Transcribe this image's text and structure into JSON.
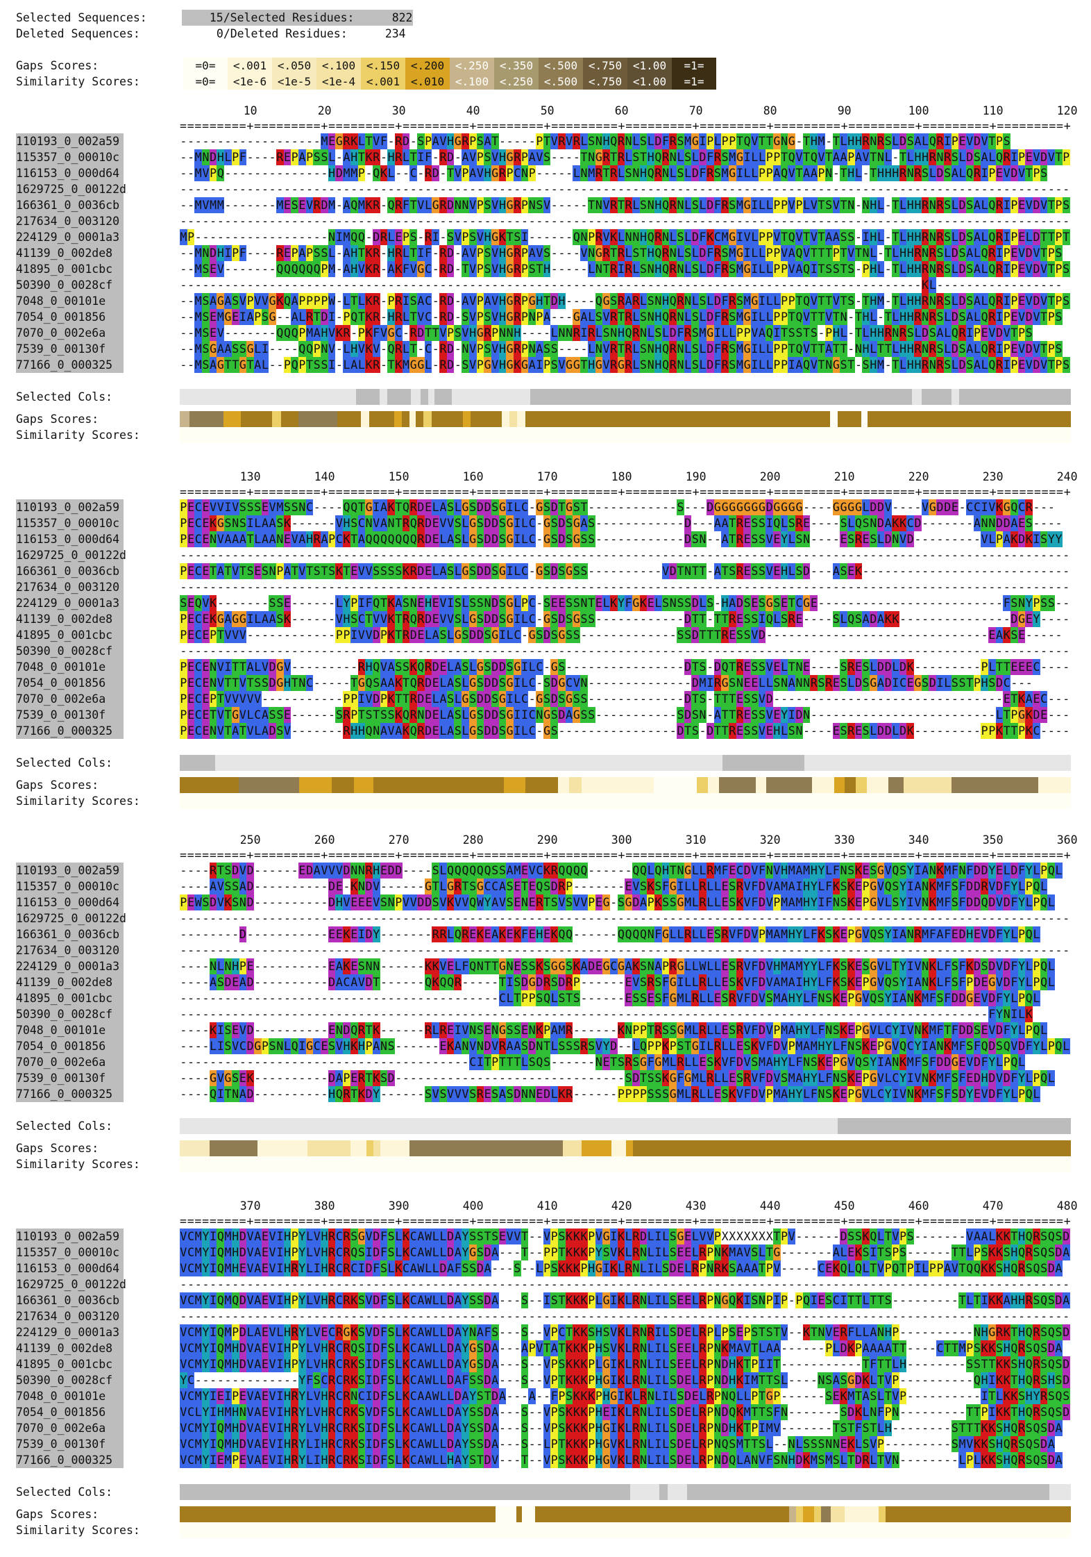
{
  "header": {
    "selected_sequences_label": "Selected Sequences:",
    "selected_sequences_value": "15",
    "selected_residues_label": "/Selected Residues:",
    "selected_residues_value": "822",
    "deleted_sequences_label": "Deleted Sequences:",
    "deleted_sequences_value": "0",
    "deleted_residues_label": "/Deleted Residues:",
    "deleted_residues_value": "234"
  },
  "legend": {
    "gaps_label": "Gaps Scores:",
    "similarity_label": "Similarity Scores:",
    "gaps_row": [
      "=0=",
      "<.001",
      "<.050",
      "<.100",
      "<.150",
      "<.200",
      "<.250",
      "<.350",
      "<.500",
      "<.750",
      "<1.00",
      "=1="
    ],
    "similarity_row": [
      "=0=",
      "<1e-6",
      "<1e-5",
      "<1e-4",
      "<.001",
      "<.010",
      "<.100",
      "<.250",
      "<.500",
      "<.750",
      "<1.00",
      "=1="
    ],
    "colors": [
      "#fffef4",
      "#fdf6d9",
      "#f7ebbd",
      "#f4e3a5",
      "#eccf67",
      "#d9a422",
      "#c8b48c",
      "#a89a6f",
      "#8f7c52",
      "#6d5b39",
      "#5f4f33",
      "#3c2e15"
    ],
    "text_colors": [
      "#111111",
      "#111111",
      "#111111",
      "#111111",
      "#111111",
      "#111111",
      "#ffffff",
      "#ffffff",
      "#ffffff",
      "#ffffff",
      "#ffffff",
      "#ffffff"
    ]
  },
  "bottom_labels": {
    "selected_cols": "Selected Cols:",
    "gaps": "Gaps Scores:",
    "similarity": "Similarity Scores:"
  },
  "sequence_names": [
    "110193_0_002a59",
    "115357_0_00010c",
    "116153_0_000d64",
    "1629725_0_00122d",
    "166361_0_0036cb",
    "217634_0_003120",
    "224129_0_0001a3",
    "41139_0_002de8",
    "41895_0_001cbc",
    "50390_0_0028cf",
    "7048_0_00101e",
    "7054_0_001856",
    "7070_0_002e6a",
    "7539_0_00130f",
    "77166_0_000325"
  ],
  "blocks": [
    {
      "ticks": [
        "10",
        "20",
        "30",
        "40",
        "50",
        "60",
        "70",
        "80",
        "90",
        "100",
        "110",
        "120"
      ],
      "ruler": "=========+=========+=========+=========+=========+=========+=========+=========+=========+=========+=========+=========+",
      "seqs": [
        "-------------------MEGRKLTVF-RD-SPAVHGRPSAT-----PTVRVRLSNHQRNLSLDFRSMGIPLPPTQVTTGNG-THM-TLHHRNRSLDSALQRIPEVDVTPS",
        "--MNDHLPF----REPAPSSL-AHTKR-HRLTIF-RD-AVPSVHGRPAVS----TNGRTRLSTHQRNLSLDFRSMGILLPPTQVTQVTAAPAVTNL-TLHHRNRSLDSALQRIPEVDVTPS",
        "--MVPQ--------------HDMMP-QKL--C-RD-TVPAVHGRPCNP-----LNMRTRLSNHQRNLSLDFRSMGILLPPAQVTAAPN-THL-THHHRNRSLDSALQRIPEVDVTPS",
        "------------------------------------------------------------------------------------------------------------------------",
        "--MVMM-------MESEVRDM-AQMKR-QRFTVLGRDNNVPSVHGRPNSV-----TNVRTRLSNHQRNLSLDFRSMGILLPPVPLVTSVTN-NHL-TLHHRNRSLDSALQRIPEVDVTPS",
        "------------------------------------------------------------------------------------------------------------------------",
        "MP------------------NIMQQ-DRLEPS-RI-SVPSVHGKTSI------QNPRVKLNNHQRNLSLDFKCMGIVLPPVTQVTVTAASS-IHL-TLHHRNRSLDSALQRIPELDTTPT",
        "--MNDHIPF----REPAPSSL-AHTKR-HRLTIF-RD-AVPSVHGRPAVS----VNGRTRLSTHQRNLSLDFRSMGILLPPVAQVTTTPTVTNL-TLHHRNRSLDSALQRIPEVDVTPS",
        "--MSEV-------QQQQQQPM-AHVKR-AKFVGC-RD-TVPSVHGRPSTH-----LNTRIRLSNHQRNLSLDFRSMGILLPPVAQITSSTS-PHL-TLHHRNRSLDSALQRIPEVDVTPS",
        "----------------------------------------------------------------------------------------------------KL-----------------",
        "--MSAGASVPVVGKQAPPPPW-LTLKR-PRISAC-RD-AVPAVHGRPGHTDH----QGSRARLSNHQRNLSLDFRSMGILLPPTQVTTVTS-THM-TLHHRNRSLDSALQRIPEVDVTPS",
        "--MSEMGEIAPSG--ALRTDI-PQTKR-HRLTVC-RD-SVPSVHGRPNPA---GALSVRTRLSNHQRNLSLDFRSMGILLPPTQVTTVTN-THL-TLHHRNRSLDSALQRIPEVDVTPS",
        "--MSEV-------QQQPMAHVKR-PKFVGC-RDTTVPSVHGRPNNH----LNNRIRLSNHQRNLSLDFRSMGILLPPVAQITSSTS-PHL-TLHHRNRSLDSALQRIPEVDVTPS",
        "--MSGAASSGLI----QQPNV-LHVKV-QRLT-C-RD-NVPSVHGRPNASS----LNVRTRLSNHQRNLSLDFRSMGILLPPTQVTTATT-NHLTTLHHRNRSLDSALQRIPEVDVTPS",
        "--MSAGTTGTAL--PQPTSSI-LALKR-TKMGGL-RD-SVPGVHGKGAIPSVGGTHGVRGRLSNHQRNLSLDFRSMGILLPPIAQVTNGST-SHM-TLHHRNRSLDSALQRIPEVDVTPS"
      ],
      "selcols": [
        {
          "c": "#e6e6e6",
          "w": 180
        },
        {
          "c": "#bcbcbc",
          "w": 24
        },
        {
          "c": "#e6e6e6",
          "w": 8
        },
        {
          "c": "#bcbcbc",
          "w": 24
        },
        {
          "c": "#e6e6e6",
          "w": 10
        },
        {
          "c": "#bcbcbc",
          "w": 8
        },
        {
          "c": "#e6e6e6",
          "w": 6
        },
        {
          "c": "#bcbcbc",
          "w": 18
        },
        {
          "c": "#e6e6e6",
          "w": 80
        },
        {
          "c": "#bcbcbc",
          "w": 390
        },
        {
          "c": "#e6e6e6",
          "w": 10
        },
        {
          "c": "#bcbcbc",
          "w": 30
        },
        {
          "c": "#e6e6e6",
          "w": 8
        },
        {
          "c": "#bcbcbc",
          "w": 260
        }
      ],
      "gaps": [
        {
          "c": "#c8b48c",
          "w": 12
        },
        {
          "c": "#8f7c52",
          "w": 44
        },
        {
          "c": "#d9a422",
          "w": 22
        },
        {
          "c": "#a47b1d",
          "w": 40
        },
        {
          "c": "#eccf67",
          "w": 12
        },
        {
          "c": "#a47b1d",
          "w": 22
        },
        {
          "c": "#8f7c52",
          "w": 50
        },
        {
          "c": "#a47b1d",
          "w": 30
        },
        {
          "c": "#fdf6d9",
          "w": 10
        },
        {
          "c": "#a47b1d",
          "w": 32
        },
        {
          "c": "#d9a422",
          "w": 10
        },
        {
          "c": "#a47b1d",
          "w": 10
        },
        {
          "c": "#fdf6d9",
          "w": 8
        },
        {
          "c": "#a47b1d",
          "w": 10
        },
        {
          "c": "#eccf67",
          "w": 10
        },
        {
          "c": "#a47b1d",
          "w": 40
        },
        {
          "c": "#d9a422",
          "w": 10
        },
        {
          "c": "#a47b1d",
          "w": 40
        },
        {
          "c": "#fdf6d9",
          "w": 10
        },
        {
          "c": "#f4e3a5",
          "w": 10
        },
        {
          "c": "#fdf6d9",
          "w": 10
        },
        {
          "c": "#a47b1d",
          "w": 390
        },
        {
          "c": "#fffef4",
          "w": 10
        },
        {
          "c": "#a47b1d",
          "w": 30
        },
        {
          "c": "#fffef4",
          "w": 8
        },
        {
          "c": "#a47b1d",
          "w": 260
        }
      ]
    },
    {
      "ticks": [
        "130",
        "140",
        "150",
        "160",
        "170",
        "180",
        "190",
        "200",
        "210",
        "220",
        "230",
        "240"
      ],
      "ruler": "=========+=========+=========+=========+=========+=========+=========+=========+=========+=========+=========+=========+",
      "seqs": [
        "PECEVVIVSSSEVMSSNC----QQTGIAKTQRDELASLGSDDSGILC-GSDTGST------------S---DGGGGGGGDGGGG----GGGGLDDV----VGDDE-CCIVKGQCR---",
        "PECEKGSNSILAASK------VHSCNVANTRQRDEVVSLGSDDSGILC-GSDSGAS------------D---AATRESSIQLSRE----SLQSNDAKKCD-------ANNDDAES----",
        "PECENVAAATLAANEVAHRAPCKTAQQQQQQQRDELASLGSDDSGILC-GSDSGSS------------DSN--ATRESSVEYLSN----ESRESLDNVD---------VLPAKDKISYY",
        "------------------------------------------------------------------------------------------------------------------------",
        "PECETATVTSESNPATVTSTSKTEVVSSSSKRDELASLGSDDSGILC-GSDSGSS----------VDTNTT-ATSRESSVEHLSD---ASEK----------------------------",
        "------------------------------------------------------------------------------------------------------------------------",
        "SEQVK-------SSE------LYPIFQTKASNEHEVISLSSNDSGLPC-SEESSNTELKYFGKELSNSSDLS-HADSESGSETCGE-------------------------FSNYPSS----",
        "PECEKGAGGILAASK------VHSCTVVKTRQRDEVVSLGSDDSGILC-GSDSGSS------------DTT-TTRESSIQLSRE----SLQSADAKK---------------DGEY----",
        "PECEPTVVV------------PPIVVDPKTRDELASLGSDDSGILC-GSDSGSS-------------SSDTTTRESSVD------------------------------EAKSE-----",
        "------------------------------------------------------------------------------------------------------------------------",
        "PECENVITTALVDGV---------RHQVASSKQRDELASLGSDDSGILC-GS----------------DTS-DQTRESSVELTNE----SRESLDDLDK---------PLTTEEEC----",
        "PECENVTTVTSSDGHTNC-----TGQSAAKTQRDELASLGSDDSGILC-SDGCVN--------------DMIRGSNEELLSNANNRSRESLDSGADICEGSDILSSTPHSDC---",
        "PECEPTVVVVV-----------PPIVDPKTTRDELASLGSDDSGILC-GSDSGSS-------------DTS-TTTESSVD-------------------------------ETKAEC----",
        "PECETVTGVLCASSE------SRPTSTSSKQRNDELASLGSDDSGIICNGSDAGSS-----------SDSN-ATTRESSVEYIDN-------------------------LTPGKDE----",
        "PECENVTATVLADSV-------RHHQNAVAKQRDELASLGSDDSGILC-GS----------------DTS-DTTRESSVEHLSN----ESRESLDDLDK---------PPKTTPKC----"
      ],
      "selcols": [
        {
          "c": "#bcbcbc",
          "w": 36
        },
        {
          "c": "#e6e6e6",
          "w": 518
        },
        {
          "c": "#bcbcbc",
          "w": 84
        },
        {
          "c": "#e6e6e6",
          "w": 272
        }
      ],
      "selcols_extra": [
        {
          "c": "#bcbcbc",
          "w": 6,
          "at": 380
        }
      ],
      "gaps": [
        {
          "c": "#a47b1d",
          "w": 54
        },
        {
          "c": "#8f7c52",
          "w": 56
        },
        {
          "c": "#d9a422",
          "w": 30
        },
        {
          "c": "#a47b1d",
          "w": 20
        },
        {
          "c": "#d9a422",
          "w": 18
        },
        {
          "c": "#a47b1d",
          "w": 120
        },
        {
          "c": "#d9a422",
          "w": 20
        },
        {
          "c": "#a47b1d",
          "w": 30
        },
        {
          "c": "#fdf6d9",
          "w": 10
        },
        {
          "c": "#f4e3a5",
          "w": 12
        },
        {
          "c": "#fdf6d9",
          "w": 66
        },
        {
          "c": "#fffef4",
          "w": 40
        },
        {
          "c": "#eccf67",
          "w": 10
        },
        {
          "c": "#fdf6d9",
          "w": 10
        },
        {
          "c": "#8f7c52",
          "w": 34
        },
        {
          "c": "#fdf6d9",
          "w": 10
        },
        {
          "c": "#8f7c52",
          "w": 42
        },
        {
          "c": "#fdf6d9",
          "w": 20
        },
        {
          "c": "#d9a422",
          "w": 10
        },
        {
          "c": "#a47b1d",
          "w": 10
        },
        {
          "c": "#eccf67",
          "w": 10
        },
        {
          "c": "#fdf6d9",
          "w": 20
        },
        {
          "c": "#8f7c52",
          "w": 14
        },
        {
          "c": "#f4e3a5",
          "w": 44
        },
        {
          "c": "#8f7c52",
          "w": 80
        },
        {
          "c": "#fdf6d9",
          "w": 30
        }
      ]
    },
    {
      "ticks": [
        "250",
        "260",
        "270",
        "280",
        "290",
        "300",
        "310",
        "320",
        "330",
        "340",
        "350",
        "360"
      ],
      "ruler": "=========+=========+=========+=========+=========+=========+=========+=========+=========+=========+=========+=========+",
      "seqs": [
        "----RTSDVD------EDAVVVDNNRHEDD----SLQQQQQQSSAMEVCKRQQQQ------QQLQHTNGLLRMFECDVFNVHMAMHYLFNSKESGVQSYIANKMFNFDDYELDFYLPQL",
        "----AVSSAD----------DE-KNDV------GTLGRTSGCCASETEQSDRP-------EVSKSFGILLRLLESRVFDVAMAIHYLFKSKEPGVQSYIANKMFSFDDRVDFYLPQL",
        "PEWSDVKSND----------DHVEEEVSNPVVDDSVKVVQWYAVSENERTSVSVVPEG-SGDAPKSSGMLRLLESKVFDVPMAMHYIFNSKEPGVLSYIVNKMFSFDDQDVDFYLPQL",
        "------------------------------------------------------------------------------------------------------------------------",
        "--------D-----------EEKEIDY-------RRLQREKEAKEKFEHEKQQ------QQQQNFGLLRLLESRVFDVPMAMHYLFKSKEPGVQSYIANRMFAFEDHEVDFYLPQL",
        "------------------------------------------------------------------------------------------------------------------------",
        "----NLNHPE----------EAKESNN------KKVELFQNTTGNESSKSGGSKADEGCGAKSNAPRGLLWLLESRVFDVHMAMYYLFKSKESGVLTYIVNKLFSFKDSDVDFYLPQL",
        "----ASDEAD----------DACAVDT------QKQQR-----TISDGDRSDRP------EVSRSFGILLRLLESKVFDVAMAIHYLFKSKEPGVQSYIANKLFSFPDEGVDFYLPQL",
        "-------------------------------------------CLTPPSQLSTS------ESSESFGMLRLLESRVFDVSMAHYLFNSKEPGVQSYIANKMFSFDDGEVDFYLPQL",
        "-------------------------------------------------------------------------------------------------------------FYNILK",
        "----KISEVD----------ENDQRTK------RLREIVNSENGSSENKPAMR------KNPPTRSSGMLRLLESRVFDVPMAHYLFNSKEPGVLCYIVNKMFTFDDSEVDFYLPQL",
        "----LISVCDGPSNLQIGCESVHKHPANS------EKANVNDVRAASDNTLSSSRSVYD--LQPPKPSTGILRLLESKVFDVPMAMHYLFNSKEPGVQCYIANKMFSFQDSQVDFYLPQL",
        "---------------------------------------CITPTTTLSQS------NETSRSGFGMLRLLESKVFDVSMAHYLFNSKEPGVQSYIANKMFSFDDGEVDFYLPQL",
        "----GVGSEK----------DAPERTKSD-------------------------------SDTSSKGFGMLRLLESRVFDVSMAHYLFNSKEPGVLCYIVNKMFSFEDHDVDFYLPQL",
        "----QITNAD----------HQRTKDY------SVSVVVSRESASDNNEDLKR------PPPPSSSGMLRLLESKVFDVPMAHYLFNSKEPGVLCYIVNKMFSFSDYEVDFYLPQL"
      ],
      "selcols": [
        {
          "c": "#e6e6e6",
          "w": 672
        },
        {
          "c": "#bcbcbc",
          "w": 1240
        }
      ],
      "gaps": [
        {
          "c": "#f7ebbd",
          "w": 42
        },
        {
          "c": "#8f7c52",
          "w": 66
        },
        {
          "c": "#fdf6d9",
          "w": 70
        },
        {
          "c": "#f4e3a5",
          "w": 60
        },
        {
          "c": "#fdf6d9",
          "w": 22
        },
        {
          "c": "#eccf67",
          "w": 10
        },
        {
          "c": "#f4e3a5",
          "w": 10
        },
        {
          "c": "#fdf6d9",
          "w": 40
        },
        {
          "c": "#8f7c52",
          "w": 214
        },
        {
          "c": "#f4e3a5",
          "w": 26
        },
        {
          "c": "#d9a422",
          "w": 42
        },
        {
          "c": "#fdf6d9",
          "w": 20
        },
        {
          "c": "#d9a422",
          "w": 10
        },
        {
          "c": "#a47b1d",
          "w": 610
        }
      ]
    },
    {
      "ticks": [
        "370",
        "380",
        "390",
        "400",
        "410",
        "420",
        "430",
        "440",
        "450",
        "460",
        "470",
        "480"
      ],
      "ruler": "=========+=========+=========+=========+=========+=========+=========+=========+=========+=========+=========+=========+",
      "seqs": [
        "VCMYIQMHDVAEVIHPYLVHRCRSGVDFSLKCAWLLDAYSSTSEVVT--VPSKKKPVGIKLRDLILSGELVVPXXXXXXXTPV------DSSKQLTVPS-------VAALKKTHQRSQSDA",
        "VCMYIQMHDVAEVIHPYLVHRCRQSIDFSLKCAWLLDAYGSDA---T--PPTKKKPYSVKLRNLILSEELRPNKMAVSLTG-------ALEKSITSPS------TTLPSKKSHQRSQSDA",
        "VCMYIQMHEVAEVIHRYLIHRCRCIDFSLKCAWLLDAFSSDA---S--LPSKKKPHGIKLRNLILSDELRPNRKSAAATPV-----CEKQLQLTVPQTPILPPAVTQQKKSHQRSQSDA",
        "------------------------------------------------------------------------------------------------------------------------",
        "VCMYIQMQDVAEVIHPYLVHRCRKSVDFSLKCAWLLDAYSSDA---S--ISTKKKPLGIKLRNLILSEELRPNGQKISNPIP-PQIESCITTLTTS---------TLTIKKAHHRSQSDA",
        "------------------------------------------------------------------------------------------------------------------------",
        "VCMYIQMPDLAEVLHRYLVECRGKSVDFSLKCAWLLDAYNAFS---S--VPCTKKSHSVKLRNRILSDELRPLPSEPSTSTV--KTNVERFLLANHP----------NHGRKTHQRSQSDA",
        "VCMYIQMHDVAEVIHPYLVHRCRQSIDFSLKCAWLLDAYGSDA---APVTATKKKPHSVKLRNLILSEELRPNKMAVTLAA------PLDKPAAAATT----CTTMPSKKSHQRSQSDA",
        "VCMYIQMHDVAEVIHPYLVHRCRKSIDFSLKCAWLLDAYGSDA---S--VPSKKKPLGIKLRNLILSEELRPNDHKTPIIT-----------TFTTLH--------SSTTKKSHQRSQSDA",
        "YC--------------YFSCRCRKSIDFSLKCAWLLDAFSSDA---S--VPTKKKPHGIKLRNLILSDELRPNDHKIMTTSL----NSASGDKLTVP----------QHIKKTHQRSHSDA",
        "VCMYIEIPEVAEVIHRYLVHRCRNCIDFSLKCAAWLLDAYSTDA---A--FPSKKKPHGIKLRNLILSDELRPNQLLPTGP------SEKMTASLTVP----------ITLKKSHYRSQSDA",
        "VCLYIHMHNVAEVIHRYLVHRCRKSVDFSLKCAWLLDAYSSDA---S--VPSKKKPHEIKLRNLILSDELRPNDQKMTTSFN-------SDKLNFPN---------TTPIKKTHQRSQSDA",
        "VCMYIQMHDVAEVIHRYLVHRCRKSIDFSLKCAWLLDAYSSDA---S--VPSKKKPHGIKLRNLILSDELRPNDHKTPIMV-------TSTFSTLH--------STTTKKSHQRSQSDA",
        "VCMYIQMHDVAEVIHRYLIHRCRKSIDFSLKCAWLLDAYSSDA---S--LPTKKKPHGVKLRNLILSDELRPNQSMTTSL--NLSSSNNEKLSVP---------SMVKKSHQRSQSDA",
        "VCMYIEMPEVAEVIHRYLIHRCRKSIDFSLKCAWLLHAYSTDV---T--VPSKKKPHGVKLRNLILSDELRPNDQLANVFSNHDKMSMSLTDRLTVN--------LPLKKSHQRSQSDA"
      ],
      "selcols": [
        {
          "c": "#bcbcbc",
          "w": 460
        },
        {
          "c": "#e6e6e6",
          "w": 30
        },
        {
          "c": "#bcbcbc",
          "w": 8
        },
        {
          "c": "#e6e6e6",
          "w": 20
        },
        {
          "c": "#bcbcbc",
          "w": 370
        },
        {
          "c": "#e6e6e6",
          "w": 96
        },
        {
          "c": "#bcbcbc",
          "w": 40
        },
        {
          "c": "#e6e6e6",
          "w": 116
        },
        {
          "c": "#bcbcbc",
          "w": 150
        }
      ],
      "gaps": [
        {
          "c": "#a47b1d",
          "w": 460
        },
        {
          "c": "#fffef4",
          "w": 30
        },
        {
          "c": "#a47b1d",
          "w": 8
        },
        {
          "c": "#fffef4",
          "w": 20
        },
        {
          "c": "#a47b1d",
          "w": 370
        },
        {
          "c": "#c8b48c",
          "w": 10
        },
        {
          "c": "#eccf67",
          "w": 10
        },
        {
          "c": "#d9a422",
          "w": 16
        },
        {
          "c": "#eccf67",
          "w": 10
        },
        {
          "c": "#8f7c52",
          "w": 14
        },
        {
          "c": "#f4e3a5",
          "w": 20
        },
        {
          "c": "#fdf6d9",
          "w": 50
        },
        {
          "c": "#eccf67",
          "w": 10
        },
        {
          "c": "#a47b1d",
          "w": 270
        }
      ]
    }
  ],
  "residue_colors": {
    "A": "#3a66e8",
    "I": "#3a66e8",
    "L": "#3a66e8",
    "M": "#3a66e8",
    "F": "#3a66e8",
    "W": "#3a66e8",
    "V": "#3a66e8",
    "C": "#3a66e8",
    "K": "#d8171b",
    "R": "#d8171b",
    "E": "#b52fbd",
    "D": "#b52fbd",
    "N": "#2fbe36",
    "Q": "#2fbe36",
    "S": "#2fbe36",
    "T": "#2fbe36",
    "G": "#ef9a2b",
    "P": "#f2ef2a",
    "H": "#1ba3b8",
    "Y": "#1ba3b8"
  }
}
